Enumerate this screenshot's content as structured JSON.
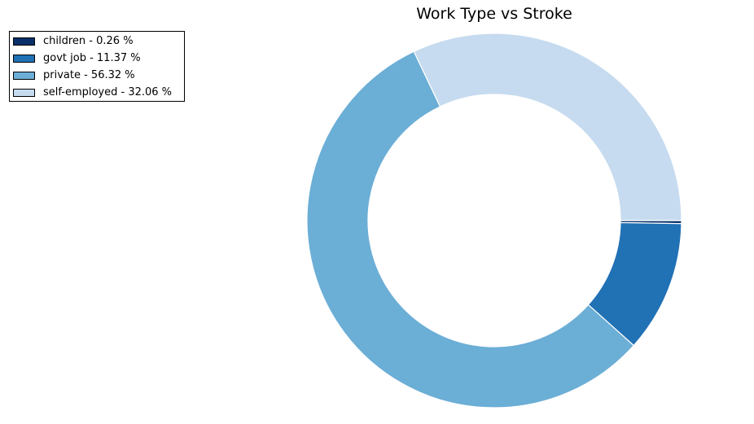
{
  "chart_data": {
    "type": "pie",
    "style": "donut",
    "title": "Work Type vs Stroke",
    "categories": [
      "children",
      "govt job",
      "private",
      "self-employed"
    ],
    "values": [
      0.26,
      11.37,
      56.32,
      32.06
    ],
    "unit": "%",
    "colors": [
      "#08306b",
      "#2171b5",
      "#6baed6",
      "#c6dbef"
    ],
    "slice_edge_color": "#ffffff",
    "start_angle_deg": 0,
    "direction": "clockwise",
    "legend": {
      "placement": "top-left",
      "entries": [
        "children - 0.26 %",
        "govt job - 11.37 %",
        "private - 56.32 %",
        "self-employed - 32.06 %"
      ]
    }
  }
}
